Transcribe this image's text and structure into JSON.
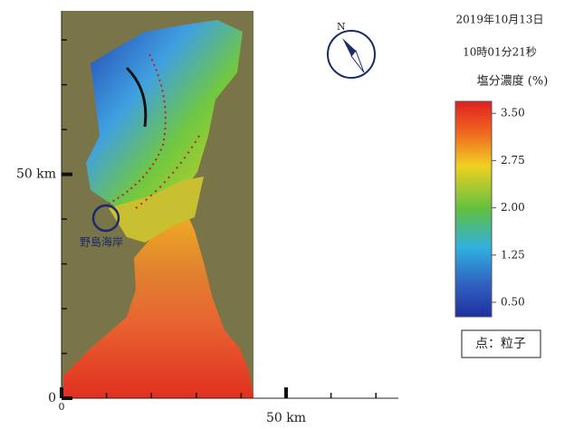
{
  "header": {
    "date": "2019年10月13日",
    "time": "10時01分21秒"
  },
  "colorbar": {
    "title": "塩分濃度 (%)",
    "lim": [
      0.27,
      3.69
    ],
    "ticks": [
      {
        "value": 3.5,
        "label": "3.50"
      },
      {
        "value": 2.75,
        "label": "2.75"
      },
      {
        "value": 2.0,
        "label": "2.00"
      },
      {
        "value": 1.25,
        "label": "1.25"
      },
      {
        "value": 0.5,
        "label": "0.50"
      }
    ]
  },
  "legend": "点：粒子",
  "place_label": "野島海岸",
  "map": {
    "xlim": [
      0,
      75
    ],
    "ylim": [
      0,
      86.5
    ],
    "xticks": [
      0,
      {
        "value": 50,
        "label": "50 km"
      }
    ],
    "yticks": [
      0,
      {
        "value": 50,
        "label": "50 km"
      }
    ],
    "xminor": [
      10,
      20,
      30,
      40,
      60,
      70
    ],
    "yminor": [
      10,
      20,
      30,
      40,
      60,
      70,
      80
    ]
  }
}
